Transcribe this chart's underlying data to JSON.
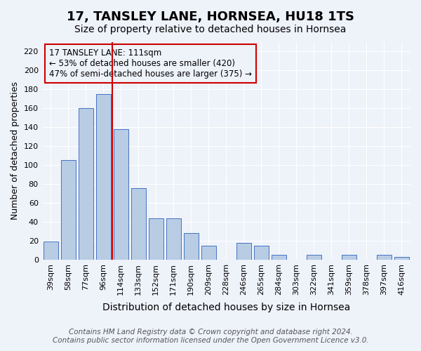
{
  "title": "17, TANSLEY LANE, HORNSEA, HU18 1TS",
  "subtitle": "Size of property relative to detached houses in Hornsea",
  "xlabel": "Distribution of detached houses by size in Hornsea",
  "ylabel": "Number of detached properties",
  "footer_line1": "Contains HM Land Registry data © Crown copyright and database right 2024.",
  "footer_line2": "Contains public sector information licensed under the Open Government Licence v3.0.",
  "categories": [
    "39sqm",
    "58sqm",
    "77sqm",
    "96sqm",
    "114sqm",
    "133sqm",
    "152sqm",
    "171sqm",
    "190sqm",
    "209sqm",
    "228sqm",
    "246sqm",
    "265sqm",
    "284sqm",
    "303sqm",
    "322sqm",
    "341sqm",
    "359sqm",
    "378sqm",
    "397sqm",
    "416sqm"
  ],
  "values": [
    19,
    105,
    160,
    175,
    138,
    76,
    44,
    44,
    28,
    15,
    0,
    18,
    15,
    5,
    0,
    5,
    0,
    5,
    0,
    5,
    3
  ],
  "bar_color": "#b8cce4",
  "bar_edge_color": "#4472c4",
  "background_color": "#eef2f9",
  "grid_color": "#ffffff",
  "annotation_line1": "17 TANSLEY LANE: 111sqm",
  "annotation_line2": "← 53% of detached houses are smaller (420)",
  "annotation_line3": "47% of semi-detached houses are larger (375) →",
  "annotation_box_edge": "#cc0000",
  "vline_x_index": 4,
  "vline_color": "#cc0000",
  "ylim": [
    0,
    230
  ],
  "yticks": [
    0,
    20,
    40,
    60,
    80,
    100,
    120,
    140,
    160,
    180,
    200,
    220
  ],
  "title_fontsize": 13,
  "subtitle_fontsize": 10,
  "xlabel_fontsize": 10,
  "ylabel_fontsize": 9,
  "tick_fontsize": 8,
  "annotation_fontsize": 8.5,
  "footer_fontsize": 7.5
}
